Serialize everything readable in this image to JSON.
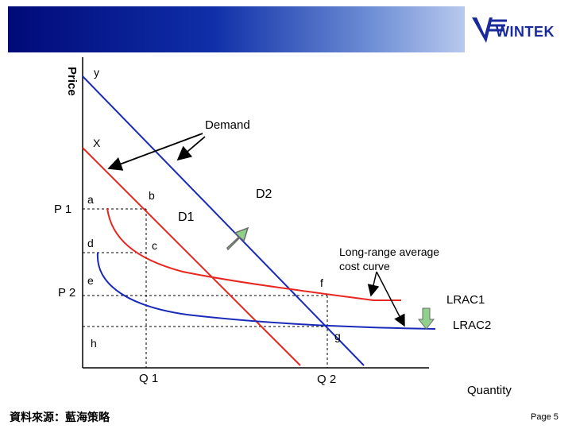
{
  "logo": {
    "text": "WINTEK",
    "color": "#1a2a9a",
    "icon": "v-stripes-logo-icon"
  },
  "axes": {
    "y_label": "Price",
    "x_label": "Quantity"
  },
  "labels": {
    "y": "y",
    "x": "X",
    "demand": "Demand",
    "a": "a",
    "b": "b",
    "c": "c",
    "d": "d",
    "e": "e",
    "f": "f",
    "g": "g",
    "h": "h",
    "p1": "P 1",
    "p2": "P 2",
    "q1": "Q 1",
    "q2": "Q 2",
    "d1": "D1",
    "d2": "D2",
    "lrac_title": "Long-range average\ncost curve",
    "lrac1": "LRAC1",
    "lrac2": "LRAC2"
  },
  "colors": {
    "d1_line": "#e8251f",
    "d2_line": "#1a2ab8",
    "lrac1_curve": "#e8251f",
    "lrac2_curve": "#1a2ab8",
    "up_arrow": "#8fd18a",
    "down_arrow": "#8fd18a"
  },
  "footer": {
    "source": "資料來源：藍海策略",
    "page": "Page 5"
  }
}
